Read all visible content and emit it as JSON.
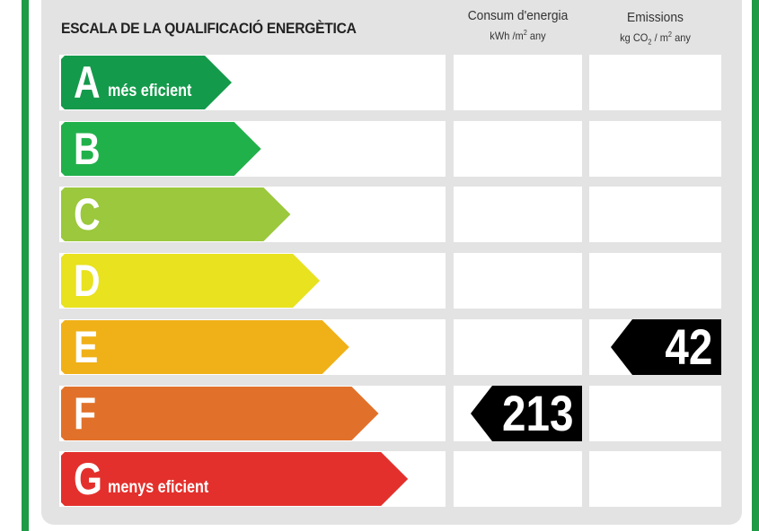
{
  "title": "ESCALA DE LA QUALIFICACIÓ ENERGÈTICA",
  "columns": {
    "energy": {
      "label": "Consum d'energia",
      "unit_a": "kWh /m",
      "unit_sup": "2",
      "unit_b": " any"
    },
    "emissions": {
      "label": "Emissions",
      "unit_a": "kg CO",
      "unit_sub": "2",
      "unit_c": " / m",
      "unit_sup": "2",
      "unit_b": " any"
    }
  },
  "classes": [
    {
      "letter": "A",
      "sublabel": "més eficient",
      "color": "#149a4b"
    },
    {
      "letter": "B",
      "sublabel": "",
      "color": "#21b14b"
    },
    {
      "letter": "C",
      "sublabel": "",
      "color": "#9bc83c"
    },
    {
      "letter": "D",
      "sublabel": "",
      "color": "#e8e21f"
    },
    {
      "letter": "E",
      "sublabel": "",
      "color": "#f0b118"
    },
    {
      "letter": "F",
      "sublabel": "",
      "color": "#e1712a"
    },
    {
      "letter": "G",
      "sublabel": "menys eficient",
      "color": "#e3302c"
    }
  ],
  "ratings": {
    "energy": {
      "value": "213",
      "class": "F"
    },
    "emissions": {
      "value": "42",
      "class": "E"
    }
  }
}
